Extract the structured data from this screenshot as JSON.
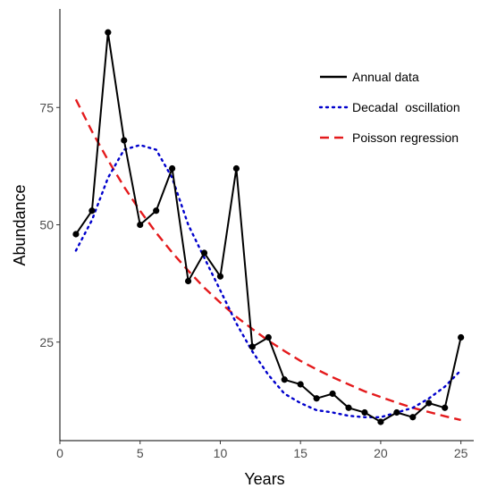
{
  "chart_data": {
    "type": "line",
    "xlabel": "Years",
    "ylabel": "Abundance",
    "xlim": [
      0,
      25.8
    ],
    "ylim": [
      4,
      96
    ],
    "xticks": [
      0,
      5,
      10,
      15,
      20,
      25
    ],
    "yticks": [
      25,
      50,
      75
    ],
    "grid": false,
    "legend_position": "top-right",
    "series": [
      {
        "name": "Annual data",
        "style": "solid",
        "markers": true,
        "color": "#000000",
        "x": [
          1,
          2,
          3,
          4,
          5,
          6,
          7,
          8,
          9,
          10,
          11,
          12,
          13,
          14,
          15,
          16,
          17,
          18,
          19,
          20,
          21,
          22,
          23,
          24,
          25
        ],
        "y": [
          48,
          53,
          91,
          68,
          50,
          53,
          62,
          38,
          44,
          39,
          62,
          24,
          26,
          17,
          16,
          13,
          14,
          11,
          10,
          8,
          10,
          9,
          12,
          11,
          26
        ]
      },
      {
        "name": "Decadal  oscillation",
        "style": "dotted",
        "markers": false,
        "color": "#0000cc",
        "x": [
          1,
          2,
          3,
          4,
          5,
          6,
          7,
          8,
          9,
          10,
          11,
          12,
          13,
          14,
          15,
          16,
          17,
          18,
          19,
          20,
          21,
          22,
          23,
          24,
          25
        ],
        "y": [
          44.5,
          51,
          60,
          66,
          67,
          66,
          60,
          50,
          43,
          36,
          29,
          23,
          18,
          14,
          12,
          10.5,
          10,
          9.3,
          9,
          9,
          10,
          11,
          13,
          15.5,
          19
        ]
      },
      {
        "name": "Poisson regression",
        "style": "dashed",
        "markers": false,
        "color": "#e41a1c",
        "x": [
          1,
          2,
          3,
          4,
          5,
          6,
          7,
          8,
          9,
          10,
          11,
          12,
          13,
          14,
          15,
          16,
          17,
          18,
          19,
          20,
          21,
          22,
          23,
          24,
          25
        ],
        "y": [
          76.7,
          69.9,
          63.8,
          58.1,
          53.0,
          48.3,
          44.1,
          40.2,
          36.6,
          33.4,
          30.4,
          27.8,
          25.3,
          23.1,
          21.0,
          19.2,
          17.5,
          16.0,
          14.5,
          13.3,
          12.1,
          11.0,
          10.1,
          9.2,
          8.4
        ]
      }
    ]
  }
}
